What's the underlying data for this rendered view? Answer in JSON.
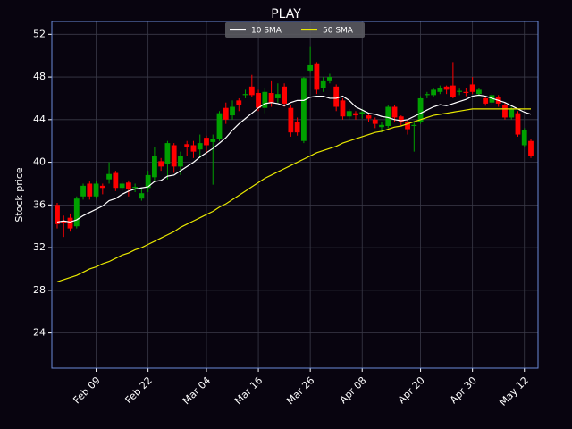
{
  "chart_data": {
    "type": "candlestick",
    "title": "PLAY",
    "y_label": "Stock price",
    "categories": [
      null,
      null,
      null,
      null,
      null,
      null,
      "Feb 09",
      null,
      null,
      null,
      null,
      null,
      null,
      null,
      "Feb 22",
      null,
      null,
      null,
      null,
      null,
      null,
      null,
      null,
      "Mar 04",
      null,
      null,
      null,
      null,
      null,
      null,
      null,
      "Mar 16",
      null,
      null,
      null,
      null,
      null,
      null,
      null,
      "Mar 26",
      null,
      null,
      null,
      null,
      null,
      null,
      null,
      "Apr 08",
      null,
      null,
      null,
      null,
      null,
      null,
      null,
      null,
      "Apr 20",
      null,
      null,
      null,
      null,
      null,
      null,
      null,
      "Apr 30",
      null,
      null,
      null,
      null,
      null,
      null,
      null,
      "May 12",
      null
    ],
    "open": [
      36,
      34.5,
      34.8,
      34,
      36.8,
      38,
      36.8,
      37.8,
      38.4,
      39,
      37.6,
      38.1,
      37.6,
      36.6,
      37.6,
      38.6,
      40.1,
      39.8,
      41.6,
      39.6,
      41.7,
      41.6,
      41.2,
      42.3,
      41.9,
      42.2,
      45.1,
      44.4,
      45.8,
      46.3,
      47.1,
      46.5,
      45.1,
      46.5,
      46,
      47.1,
      45.1,
      43.8,
      42,
      48.6,
      49.2,
      47,
      47.6,
      47.1,
      45.8,
      44.3,
      44.6,
      44.5,
      44.4,
      44,
      43.3,
      43.4,
      45.2,
      44.3,
      43.8,
      43.4,
      43.8,
      46.3,
      46.3,
      46.6,
      47.1,
      47.2,
      46.6,
      46.6,
      47.3,
      46.4,
      46,
      45.6,
      46.1,
      45.4,
      44.2,
      44.6,
      41.6,
      42
    ],
    "high": [
      36.2,
      35,
      35.2,
      36.8,
      38,
      38.2,
      38.2,
      38,
      40,
      39.2,
      38.2,
      38.3,
      38,
      37.5,
      39.2,
      41.4,
      40.4,
      42,
      41.8,
      41,
      42,
      42,
      42.6,
      42.5,
      42.6,
      44.8,
      45.6,
      45.8,
      46,
      46.8,
      48.2,
      46.8,
      47,
      47.6,
      47.4,
      47.4,
      45.4,
      44.2,
      48,
      50.8,
      49.4,
      48,
      48.3,
      47.3,
      46,
      45,
      44.8,
      45,
      44.6,
      44.2,
      43.8,
      45.4,
      45.4,
      44.4,
      44,
      43.8,
      46.2,
      46.6,
      47,
      47.2,
      47.2,
      49.4,
      46.9,
      47,
      48,
      47,
      46.2,
      46.5,
      46.3,
      45.6,
      45.2,
      44.8,
      43.2,
      42.2
    ],
    "low": [
      33.8,
      33,
      33.5,
      33.8,
      36.5,
      36.5,
      36.6,
      37,
      38,
      37.3,
      37.3,
      36.8,
      37.2,
      36.4,
      37.2,
      38.2,
      39.2,
      38.4,
      39,
      38.8,
      40.6,
      40.4,
      40.4,
      40.8,
      37.9,
      42,
      43.6,
      44,
      44.8,
      46,
      46.1,
      44.8,
      44.6,
      45.2,
      45.6,
      45.2,
      42.4,
      42.5,
      41.8,
      48.4,
      46.4,
      46.6,
      47.4,
      44.8,
      44,
      44,
      44,
      44.1,
      43.8,
      43.2,
      42.8,
      43.2,
      43.8,
      43.4,
      42.6,
      41,
      43.6,
      46,
      46.1,
      46.4,
      46.4,
      46,
      46.3,
      46.2,
      46.4,
      46.2,
      45.3,
      45.4,
      45.2,
      44,
      44,
      42.4,
      41.4,
      40.4
    ],
    "close": [
      34.2,
      34.3,
      33.8,
      36.6,
      37.8,
      36.8,
      38,
      37.6,
      38.9,
      37.6,
      38,
      37.5,
      37.7,
      37.1,
      38.8,
      40.6,
      39.6,
      41.8,
      39.6,
      40.6,
      41.4,
      41,
      41.8,
      41.6,
      42.2,
      44.6,
      44,
      45.2,
      45.4,
      46.4,
      46.3,
      45.1,
      46.6,
      45.6,
      46.4,
      45.5,
      42.8,
      42.8,
      47.9,
      49.1,
      46.8,
      47.6,
      48,
      45.2,
      44.3,
      44.8,
      44.4,
      44.7,
      44.1,
      43.6,
      43.5,
      45.2,
      44.2,
      43.8,
      43.1,
      43.5,
      46,
      46.4,
      46.8,
      47,
      46.8,
      46.1,
      46.7,
      46.5,
      46.6,
      46.8,
      45.5,
      46.3,
      45.5,
      44.2,
      45,
      42.6,
      43,
      40.6
    ],
    "up_color": "#00a000",
    "down_color": "#ff0000",
    "series": [
      {
        "name": "10 SMA",
        "color": "#ffffff",
        "values": [
          34.4,
          34.5,
          34.4,
          34.6,
          35.0,
          35.3,
          35.6,
          35.9,
          36.4,
          36.6,
          37.0,
          37.3,
          37.5,
          37.6,
          37.7,
          38.2,
          38.3,
          38.7,
          38.8,
          39.2,
          39.6,
          40.0,
          40.5,
          40.9,
          41.3,
          41.8,
          42.3,
          43.0,
          43.6,
          44.1,
          44.6,
          45.1,
          45.5,
          45.6,
          45.5,
          45.3,
          45.6,
          45.8,
          45.8,
          46.1,
          46.2,
          46.2,
          46.0,
          46.0,
          46.2,
          45.8,
          45.2,
          44.9,
          44.6,
          44.5,
          44.3,
          44.2,
          44.0,
          43.9,
          44.0,
          44.3,
          44.6,
          44.9,
          45.2,
          45.4,
          45.3,
          45.5,
          45.7,
          45.9,
          46.2,
          46.3,
          46.2,
          46.0,
          45.8,
          45.6,
          45.3,
          45.0,
          44.7,
          44.5
        ]
      },
      {
        "name": "50 SMA",
        "color": "#e8e800",
        "values": [
          28.8,
          29.0,
          29.2,
          29.4,
          29.7,
          30.0,
          30.2,
          30.5,
          30.7,
          31.0,
          31.3,
          31.5,
          31.8,
          32.0,
          32.3,
          32.6,
          32.9,
          33.2,
          33.5,
          33.9,
          34.2,
          34.5,
          34.8,
          35.1,
          35.4,
          35.8,
          36.1,
          36.5,
          36.9,
          37.3,
          37.7,
          38.1,
          38.5,
          38.8,
          39.1,
          39.4,
          39.7,
          40.0,
          40.3,
          40.6,
          40.9,
          41.1,
          41.3,
          41.5,
          41.8,
          42.0,
          42.2,
          42.4,
          42.6,
          42.8,
          42.9,
          43.1,
          43.3,
          43.4,
          43.6,
          43.8,
          44.0,
          44.2,
          44.4,
          44.5,
          44.6,
          44.7,
          44.8,
          44.9,
          45.0,
          45.0,
          45.0,
          45.0,
          45.0,
          45.0,
          45.0,
          45.0,
          45.0,
          45.0
        ]
      }
    ],
    "ylim": [
      20.7,
      53.2
    ],
    "yticks": [
      24,
      28,
      32,
      36,
      40,
      44,
      48,
      52
    ],
    "grid": true,
    "legend": "upper center"
  }
}
